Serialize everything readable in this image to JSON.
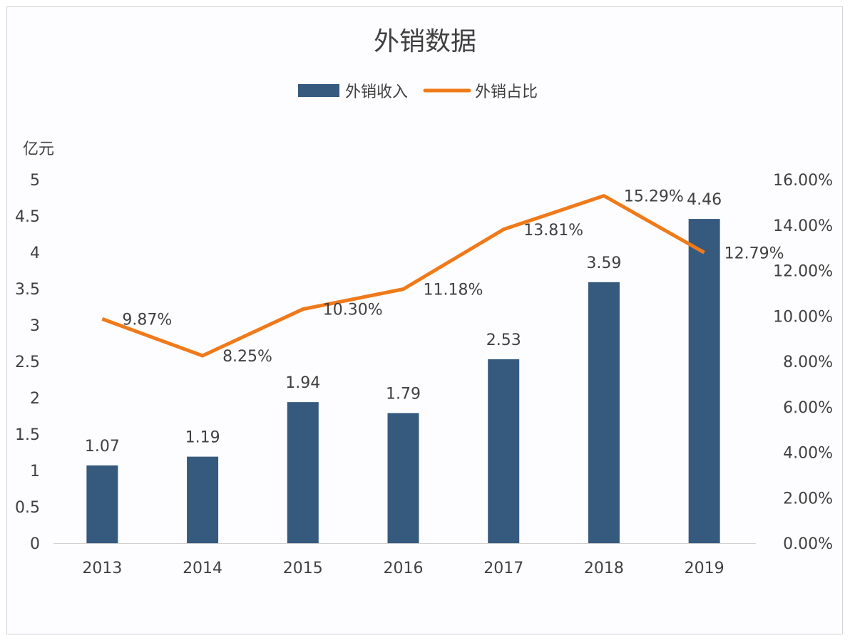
{
  "chart_data": {
    "type": "bar+line",
    "title": "外销数据",
    "ylabel": "亿元",
    "categories": [
      "2013",
      "2014",
      "2015",
      "2016",
      "2017",
      "2018",
      "2019"
    ],
    "series": [
      {
        "name": "外销收入",
        "type": "bar",
        "axis": "left",
        "color": "#355a7e",
        "values": [
          1.07,
          1.19,
          1.94,
          1.79,
          2.53,
          3.59,
          4.46
        ],
        "labels": [
          "1.07",
          "1.19",
          "1.94",
          "1.79",
          "2.53",
          "3.59",
          "4.46"
        ]
      },
      {
        "name": "外销占比",
        "type": "line",
        "axis": "right",
        "color": "#f07a1a",
        "values": [
          9.87,
          8.25,
          10.3,
          11.18,
          13.81,
          15.29,
          12.79
        ],
        "labels": [
          "9.87%",
          "8.25%",
          "10.30%",
          "11.18%",
          "13.81%",
          "15.29%",
          "12.79%"
        ]
      }
    ],
    "ylim": [
      0,
      5
    ],
    "yticks": [
      "0",
      "0.5",
      "1",
      "1.5",
      "2",
      "2.5",
      "3",
      "3.5",
      "4",
      "4.5",
      "5"
    ],
    "y2lim": [
      0,
      16
    ],
    "y2ticks": [
      "0.00%",
      "2.00%",
      "4.00%",
      "6.00%",
      "8.00%",
      "10.00%",
      "12.00%",
      "14.00%",
      "16.00%"
    ],
    "legend": "top",
    "grid": false
  }
}
